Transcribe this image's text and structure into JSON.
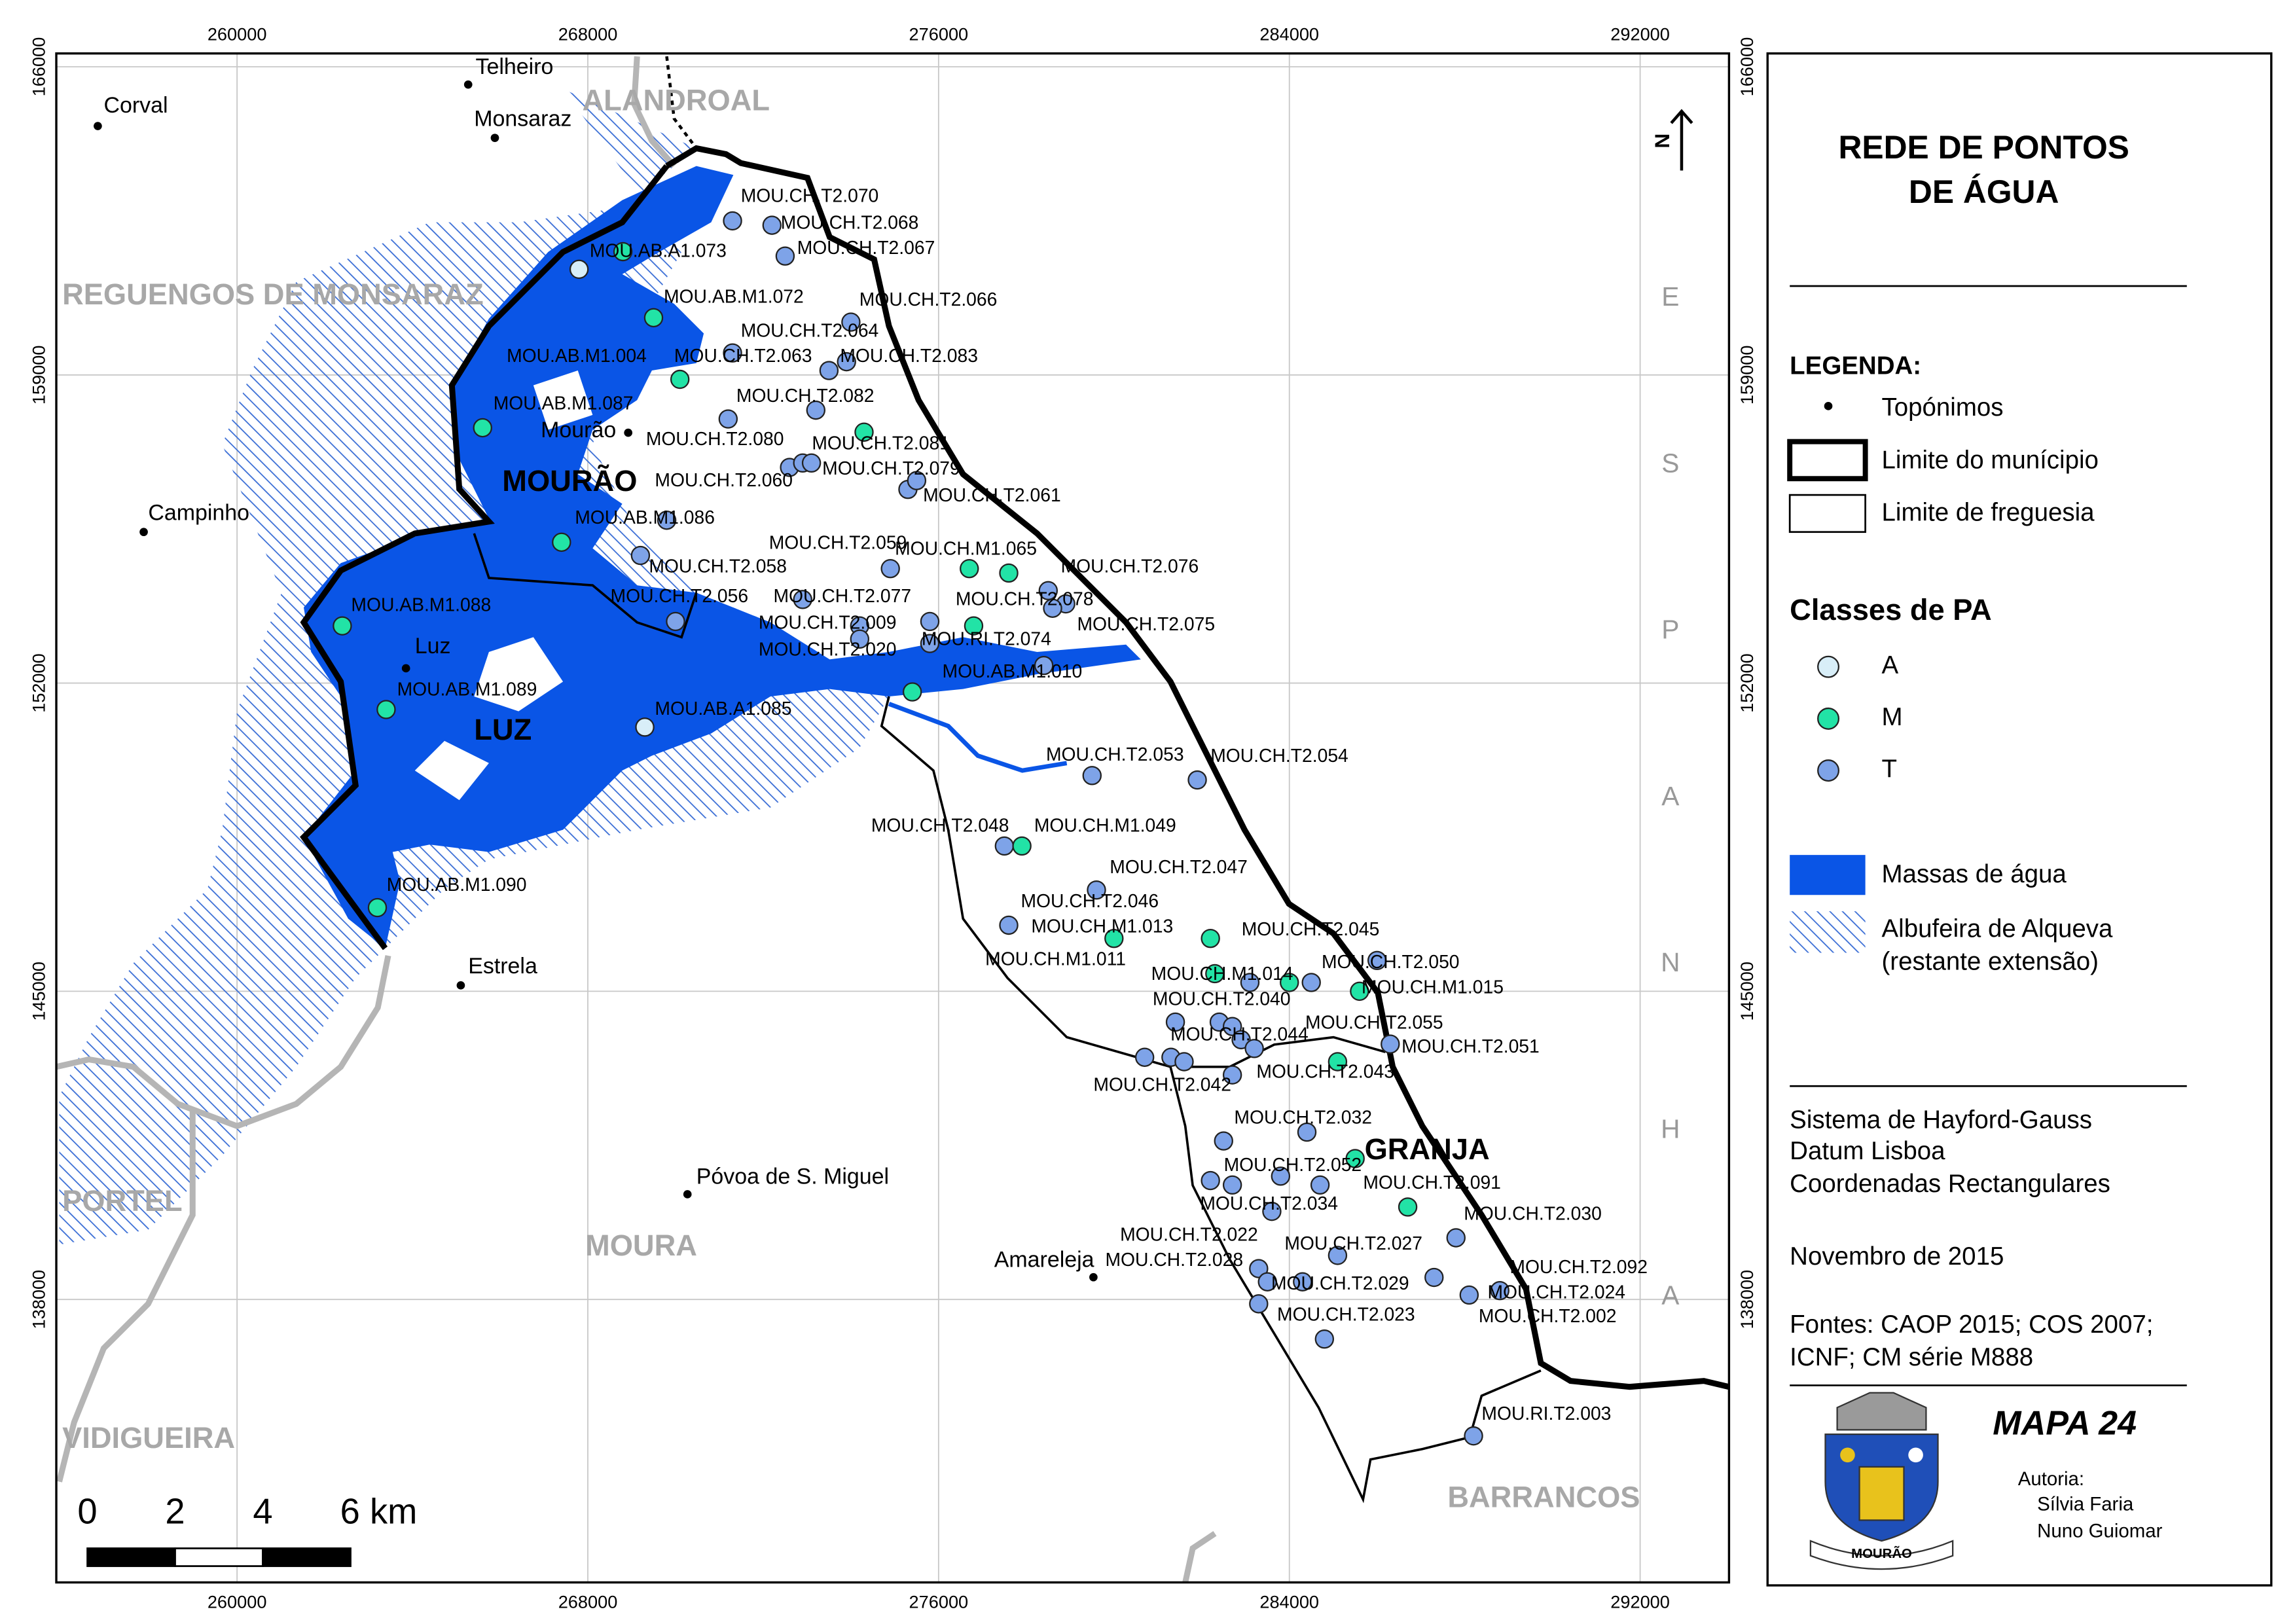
{
  "title": [
    "REDE DE PONTOS",
    "DE ÁGUA"
  ],
  "map": {
    "xticks": [
      260000,
      268000,
      276000,
      284000,
      292000
    ],
    "yticks": [
      166000,
      159000,
      152000,
      145000,
      138000
    ],
    "points": [
      {
        "e": 271300,
        "n": 162500,
        "class": "T"
      },
      {
        "e": 272200,
        "n": 162400,
        "class": "T"
      },
      {
        "e": 272500,
        "n": 161700,
        "class": "T"
      },
      {
        "e": 267800,
        "n": 161400,
        "class": "A"
      },
      {
        "e": 268800,
        "n": 161800,
        "class": "M"
      },
      {
        "e": 269500,
        "n": 160300,
        "class": "M"
      },
      {
        "e": 274000,
        "n": 160200,
        "class": "T"
      },
      {
        "e": 273900,
        "n": 159300,
        "class": "T"
      },
      {
        "e": 271300,
        "n": 159500,
        "class": "T"
      },
      {
        "e": 273500,
        "n": 159100,
        "class": "T"
      },
      {
        "e": 270100,
        "n": 158900,
        "class": "M"
      },
      {
        "e": 265600,
        "n": 157800,
        "class": "M"
      },
      {
        "e": 273200,
        "n": 158200,
        "class": "T"
      },
      {
        "e": 274300,
        "n": 157700,
        "class": "M"
      },
      {
        "e": 271200,
        "n": 158000,
        "class": "T"
      },
      {
        "e": 272600,
        "n": 156900,
        "class": "T"
      },
      {
        "e": 272900,
        "n": 157000,
        "class": "T"
      },
      {
        "e": 273100,
        "n": 157000,
        "class": "T"
      },
      {
        "e": 275300,
        "n": 156400,
        "class": "T"
      },
      {
        "e": 275500,
        "n": 156600,
        "class": "T"
      },
      {
        "e": 269800,
        "n": 155700,
        "class": "T"
      },
      {
        "e": 267400,
        "n": 155200,
        "class": "M"
      },
      {
        "e": 274900,
        "n": 154600,
        "class": "T"
      },
      {
        "e": 269200,
        "n": 154900,
        "class": "T"
      },
      {
        "e": 276700,
        "n": 154600,
        "class": "M"
      },
      {
        "e": 277600,
        "n": 154500,
        "class": "M"
      },
      {
        "e": 278500,
        "n": 154100,
        "class": "T"
      },
      {
        "e": 278900,
        "n": 153800,
        "class": "T"
      },
      {
        "e": 278600,
        "n": 153700,
        "class": "T"
      },
      {
        "e": 272900,
        "n": 153900,
        "class": "T"
      },
      {
        "e": 270000,
        "n": 153400,
        "class": "T"
      },
      {
        "e": 274200,
        "n": 153300,
        "class": "T"
      },
      {
        "e": 275800,
        "n": 153400,
        "class": "T"
      },
      {
        "e": 276800,
        "n": 153300,
        "class": "M"
      },
      {
        "e": 274200,
        "n": 153000,
        "class": "T"
      },
      {
        "e": 275800,
        "n": 152900,
        "class": "T"
      },
      {
        "e": 275400,
        "n": 151800,
        "class": "M"
      },
      {
        "e": 278400,
        "n": 152400,
        "class": "T"
      },
      {
        "e": 262400,
        "n": 153300,
        "class": "M"
      },
      {
        "e": 263400,
        "n": 151400,
        "class": "M"
      },
      {
        "e": 269300,
        "n": 151000,
        "class": "A"
      },
      {
        "e": 279500,
        "n": 149900,
        "class": "T"
      },
      {
        "e": 281900,
        "n": 149800,
        "class": "T"
      },
      {
        "e": 277500,
        "n": 148300,
        "class": "T"
      },
      {
        "e": 277900,
        "n": 148300,
        "class": "M"
      },
      {
        "e": 279600,
        "n": 147300,
        "class": "T"
      },
      {
        "e": 277600,
        "n": 146500,
        "class": "T"
      },
      {
        "e": 280000,
        "n": 146200,
        "class": "M"
      },
      {
        "e": 282200,
        "n": 146200,
        "class": "M"
      },
      {
        "e": 284000,
        "n": 145200,
        "class": "M"
      },
      {
        "e": 284500,
        "n": 145200,
        "class": "T"
      },
      {
        "e": 283100,
        "n": 145200,
        "class": "T"
      },
      {
        "e": 282300,
        "n": 145400,
        "class": "M"
      },
      {
        "e": 286000,
        "n": 145700,
        "class": "T"
      },
      {
        "e": 285600,
        "n": 145000,
        "class": "M"
      },
      {
        "e": 282400,
        "n": 144300,
        "class": "T"
      },
      {
        "e": 282700,
        "n": 144200,
        "class": "T"
      },
      {
        "e": 282900,
        "n": 143900,
        "class": "T"
      },
      {
        "e": 283200,
        "n": 143700,
        "class": "T"
      },
      {
        "e": 286300,
        "n": 143800,
        "class": "T"
      },
      {
        "e": 285100,
        "n": 143400,
        "class": "M"
      },
      {
        "e": 280700,
        "n": 143500,
        "class": "T"
      },
      {
        "e": 281300,
        "n": 143500,
        "class": "T"
      },
      {
        "e": 281600,
        "n": 143400,
        "class": "T"
      },
      {
        "e": 281400,
        "n": 144300,
        "class": "T"
      },
      {
        "e": 282700,
        "n": 143100,
        "class": "T"
      },
      {
        "e": 284400,
        "n": 141800,
        "class": "T"
      },
      {
        "e": 282500,
        "n": 141600,
        "class": "T"
      },
      {
        "e": 285500,
        "n": 141200,
        "class": "M"
      },
      {
        "e": 282200,
        "n": 140700,
        "class": "T"
      },
      {
        "e": 282700,
        "n": 140600,
        "class": "T"
      },
      {
        "e": 283800,
        "n": 140800,
        "class": "T"
      },
      {
        "e": 284700,
        "n": 140600,
        "class": "T"
      },
      {
        "e": 286700,
        "n": 140100,
        "class": "M"
      },
      {
        "e": 283600,
        "n": 140000,
        "class": "T"
      },
      {
        "e": 287800,
        "n": 139400,
        "class": "T"
      },
      {
        "e": 285100,
        "n": 139000,
        "class": "T"
      },
      {
        "e": 283300,
        "n": 138700,
        "class": "T"
      },
      {
        "e": 283500,
        "n": 138400,
        "class": "T"
      },
      {
        "e": 283300,
        "n": 137900,
        "class": "T"
      },
      {
        "e": 284300,
        "n": 138400,
        "class": "T"
      },
      {
        "e": 287300,
        "n": 138500,
        "class": "T"
      },
      {
        "e": 288800,
        "n": 138200,
        "class": "T"
      },
      {
        "e": 288100,
        "n": 138100,
        "class": "T"
      },
      {
        "e": 284800,
        "n": 137100,
        "class": "T"
      },
      {
        "e": 288200,
        "n": 134900,
        "class": "T"
      },
      {
        "e": 263200,
        "n": 146900,
        "class": "M"
      }
    ],
    "point_labels": [
      "MOU.CH.T2.070",
      "MOU.CH.T2.068",
      "MOU.CH.T2.067",
      "MOU.AB.A1.073",
      "MOU.AB.M1.072",
      "MOU.CH.T2.066",
      "MOU.CH.T2.064",
      "MOU.AB.M1.004",
      "MOU.CH.T2.063",
      "MOU.CH.T2.083",
      "MOU.AB.M1.087",
      "MOU.CH.T2.082",
      "MOU.CH.T2.080",
      "MOU.CH.T2.081",
      "MOU.CH.T2.079",
      "MOU.CH.T2.060",
      "MOU.CH.T2.061",
      "MOU.AB.M1.086",
      "MOU.CH.T2.059",
      "MOU.CH.M1.065",
      "MOU.CH.T2.058",
      "MOU.CH.T2.076",
      "MOU.CH.T2.056",
      "MOU.CH.T2.077",
      "MOU.CH.T2.078",
      "MOU.CH.T2.009",
      "MOU.RI.T2.074",
      "MOU.CH.T2.075",
      "MOU.CH.T2.020",
      "MOU.AB.M1.010",
      "MOU.AB.M1.088",
      "MOU.AB.M1.089",
      "MOU.AB.A1.085",
      "MOU.CH.T2.053",
      "MOU.CH.T2.054",
      "MOU.CH.T2.048",
      "MOU.CH.M1.049",
      "MOU.CH.T2.047",
      "MOU.CH.T2.046",
      "MOU.CH.M1.013",
      "MOU.CH.T2.045",
      "MOU.CH.M1.011",
      "MOU.CH.T2.050",
      "MOU.CH.M1.014",
      "MOU.CH.M1.015",
      "MOU.CH.T2.040",
      "MOU.CH.T2.055",
      "MOU.CH.T2.044",
      "MOU.CH.T2.051",
      "MOU.CH.T2.043",
      "MOU.CH.T2.042",
      "MOU.CH.T2.032",
      "MOU.CH.T2.052",
      "MOU.CH.T2.091",
      "MOU.CH.T2.034",
      "MOU.CH.T2.030",
      "MOU.CH.T2.022",
      "MOU.CH.T2.027",
      "MOU.CH.T2.028",
      "MOU.CH.T2.092",
      "MOU.CH.T2.029",
      "MOU.CH.T2.024",
      "MOU.CH.T2.023",
      "MOU.CH.T2.002",
      "MOU.RI.T2.003",
      "MOU.AB.M1.090"
    ],
    "places": [
      "Telheiro",
      "Corval",
      "Monsaraz",
      "Mourão",
      "Campinho",
      "Luz",
      "Estrela",
      "Póvoa de S. Miguel",
      "Amareleja"
    ],
    "municipalities": [
      "ALANDROAL",
      "REGUENGOS DE MONSARAZ",
      "PORTEL",
      "MOURA",
      "VIDIGUEIRA",
      "BARRANCOS"
    ],
    "parishes": [
      "MOURÃO",
      "LUZ",
      "GRANJA"
    ],
    "country": "ESPANHA",
    "north": "N",
    "scale_labels": [
      0,
      2,
      4,
      {
        "value": 6,
        "label": "6 km"
      }
    ]
  },
  "legend": {
    "heading": "LEGENDA:",
    "items": [
      "Topónimos",
      "Limite do munícipio",
      "Limite de freguesia"
    ],
    "classes_heading": "Classes de PA",
    "classes": [
      {
        "name": "A",
        "color": "#d8eef8"
      },
      {
        "name": "M",
        "color": "#22e3a6"
      },
      {
        "name": "T",
        "color": "#7ea3e8"
      }
    ],
    "water": "Massas de água",
    "reservoir": [
      "Albufeira de Alqueva",
      "(restante extensão)"
    ]
  },
  "info": [
    "Sistema de Hayford-Gauss",
    "Datum Lisboa",
    "Coordenadas Rectangulares"
  ],
  "date": "Novembro de 2015",
  "sources": [
    "Fontes: CAOP 2015; COS 2007;",
    "ICNF; CM série M888"
  ],
  "map_number": "MAPA 24",
  "authors_heading": "Autoria:",
  "authors": [
    "Sílvia Faria",
    "Nuno Guiomar"
  ],
  "crest_label": "MOURÃO"
}
